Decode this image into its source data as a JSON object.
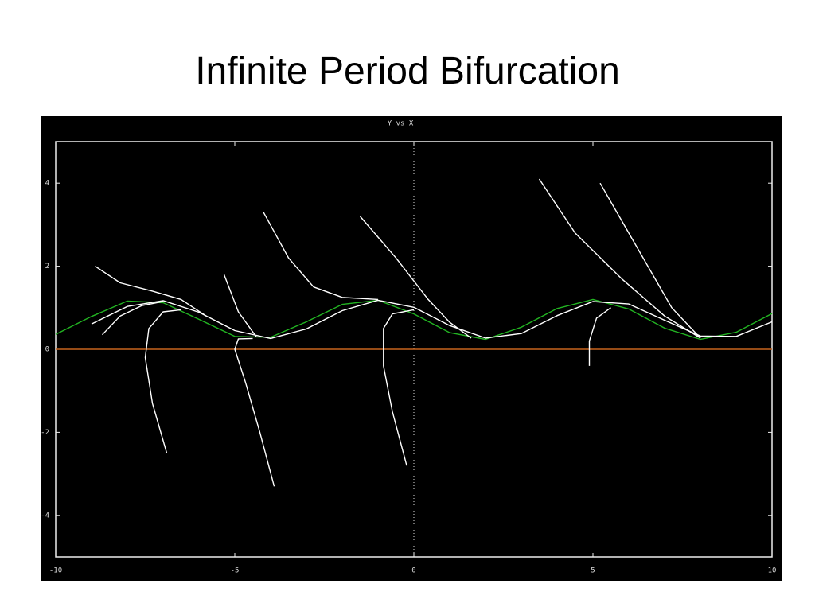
{
  "title": "Infinite Period Bifurcation",
  "chart_data": {
    "type": "line",
    "title": "Y vs X",
    "xlim": [
      -10,
      10
    ],
    "ylim": [
      -5,
      5
    ],
    "xticks": [
      -10,
      -5,
      0,
      5,
      10
    ],
    "yticks": [
      -4,
      -2,
      0,
      2,
      4
    ],
    "series": [
      {
        "color": "#c8641e",
        "x": [
          -10,
          10
        ],
        "values": [
          0,
          0
        ]
      },
      {
        "color": "#22b422",
        "x": [
          -10,
          -9,
          -8,
          -7,
          -6,
          -5,
          -4,
          -3,
          -2,
          -1,
          0,
          1,
          2,
          3,
          4,
          5,
          6,
          7,
          8,
          9,
          10
        ],
        "values": [
          0.36,
          0.79,
          1.16,
          1.12,
          0.72,
          0.31,
          0.29,
          0.66,
          1.08,
          1.18,
          0.85,
          0.4,
          0.24,
          0.53,
          0.98,
          1.2,
          0.97,
          0.51,
          0.24,
          0.41,
          0.86
        ]
      },
      {
        "color": "#ffffff",
        "x": [
          -9,
          -8,
          -7,
          -6,
          -5,
          -4,
          -3,
          -2,
          -1,
          0,
          1,
          2,
          3,
          4,
          5,
          6,
          7,
          8,
          9,
          10
        ],
        "values": [
          0.61,
          1.03,
          1.17,
          0.89,
          0.45,
          0.26,
          0.49,
          0.93,
          1.18,
          1.01,
          0.57,
          0.27,
          0.38,
          0.81,
          1.15,
          1.09,
          0.7,
          0.32,
          0.31,
          0.66
        ]
      },
      {
        "color": "#ffffff",
        "x": [
          -3.9,
          -4.3,
          -4.7,
          -5.0,
          -4.9,
          -4.5
        ],
        "values": [
          -3.3,
          -2.0,
          -0.8,
          0.0,
          0.25,
          0.26
        ]
      },
      {
        "color": "#ffffff",
        "x": [
          -0.2,
          -0.6,
          -0.85,
          -0.85,
          -0.6,
          0
        ],
        "values": [
          -2.8,
          -1.5,
          -0.4,
          0.5,
          0.85,
          0.95
        ]
      },
      {
        "color": "#ffffff",
        "x": [
          -6.9,
          -7.3,
          -7.5,
          -7.4,
          -7.0,
          -6.5
        ],
        "values": [
          -2.5,
          -1.3,
          -0.2,
          0.5,
          0.9,
          0.95
        ]
      },
      {
        "color": "#ffffff",
        "x": [
          4.9,
          4.9,
          5.1,
          5.5
        ],
        "values": [
          -0.4,
          0.2,
          0.75,
          1.0
        ]
      },
      {
        "color": "#ffffff",
        "x": [
          -4.2,
          -3.5,
          -2.8,
          -2.0,
          -1.0
        ],
        "values": [
          3.3,
          2.2,
          1.5,
          1.25,
          1.2
        ]
      },
      {
        "color": "#ffffff",
        "x": [
          -1.5,
          -0.5,
          0.4,
          1.0,
          1.6
        ],
        "values": [
          3.2,
          2.2,
          1.2,
          0.65,
          0.27
        ]
      },
      {
        "color": "#ffffff",
        "x": [
          3.5,
          4.5,
          5.8,
          7.0,
          8.0
        ],
        "values": [
          4.1,
          2.8,
          1.7,
          0.8,
          0.27
        ]
      },
      {
        "color": "#ffffff",
        "x": [
          5.2,
          6.2,
          7.2,
          8.0
        ],
        "values": [
          4.0,
          2.5,
          1.0,
          0.27
        ]
      },
      {
        "color": "#ffffff",
        "x": [
          -5.3,
          -4.9,
          -4.4
        ],
        "values": [
          1.8,
          0.9,
          0.3
        ]
      },
      {
        "color": "#ffffff",
        "x": [
          -8.9,
          -8.2,
          -7.3,
          -6.5,
          -5.8
        ],
        "values": [
          2.0,
          1.6,
          1.4,
          1.2,
          0.8
        ]
      },
      {
        "color": "#ffffff",
        "x": [
          -8.7,
          -8.2,
          -7.6,
          -7.0
        ],
        "values": [
          0.35,
          0.8,
          1.05,
          1.15
        ]
      }
    ]
  }
}
